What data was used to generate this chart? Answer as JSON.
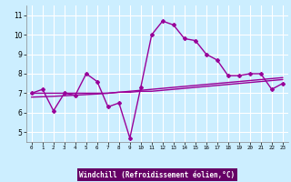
{
  "x": [
    0,
    1,
    2,
    3,
    4,
    5,
    6,
    7,
    8,
    9,
    10,
    11,
    12,
    13,
    14,
    15,
    16,
    17,
    18,
    19,
    20,
    21,
    22,
    23
  ],
  "y_line": [
    7.0,
    7.2,
    6.1,
    7.0,
    6.9,
    8.0,
    7.6,
    6.3,
    6.5,
    4.7,
    7.3,
    10.0,
    10.7,
    10.5,
    9.8,
    9.7,
    9.0,
    8.7,
    7.9,
    7.9,
    8.0,
    8.0,
    7.2,
    7.5
  ],
  "y_trend1": [
    7.0,
    7.0,
    7.0,
    7.0,
    7.0,
    7.0,
    7.0,
    7.0,
    7.05,
    7.05,
    7.1,
    7.1,
    7.15,
    7.2,
    7.25,
    7.3,
    7.35,
    7.4,
    7.45,
    7.5,
    7.55,
    7.6,
    7.65,
    7.7
  ],
  "y_trend2": [
    6.8,
    6.82,
    6.84,
    6.87,
    6.9,
    6.93,
    6.96,
    7.0,
    7.05,
    7.1,
    7.15,
    7.2,
    7.25,
    7.3,
    7.35,
    7.4,
    7.45,
    7.5,
    7.55,
    7.6,
    7.65,
    7.7,
    7.75,
    7.8
  ],
  "line_color": "#990099",
  "trend_color": "#990099",
  "bg_color": "#cceeff",
  "grid_color": "#ffffff",
  "label_bg_color": "#660066",
  "label_text_color": "#ffffff",
  "xlabel": "Windchill (Refroidissement éolien,°C)",
  "ylim": [
    4.5,
    11.5
  ],
  "xlim": [
    -0.5,
    23.5
  ],
  "yticks": [
    5,
    6,
    7,
    8,
    9,
    10,
    11
  ],
  "xticks": [
    0,
    1,
    2,
    3,
    4,
    5,
    6,
    7,
    8,
    9,
    10,
    11,
    12,
    13,
    14,
    15,
    16,
    17,
    18,
    19,
    20,
    21,
    22,
    23
  ]
}
